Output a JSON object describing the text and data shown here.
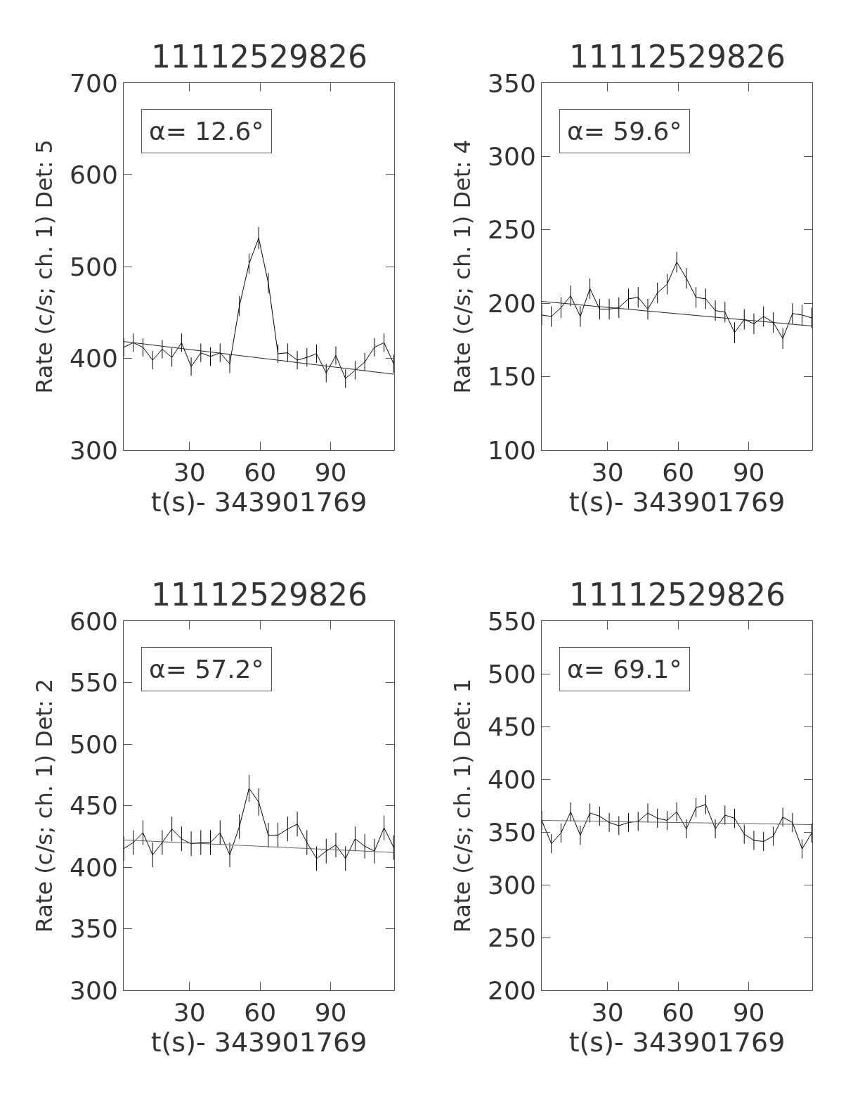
{
  "chart_data": [
    {
      "type": "line",
      "title": "11112529826",
      "xlabel": "t(s)- 343901769",
      "ylabel": "Rate (c/s; ch. 1) Det: 5",
      "annotations": [
        "α= 12.6°"
      ],
      "x": [
        2,
        6.1,
        10.2,
        14.3,
        18.4,
        22.5,
        26.6,
        30.7,
        34.8,
        38.9,
        43,
        47.1,
        51.2,
        55.3,
        59.4,
        63.5,
        67.6,
        71.7,
        75.8,
        79.9,
        84,
        88.1,
        92.2,
        96.3,
        100.4,
        104.5,
        108.6,
        112.7,
        116.8
      ],
      "xlim": [
        2,
        117
      ],
      "xticks": [
        30,
        60,
        90
      ],
      "ylim": [
        300,
        700
      ],
      "yticks": [
        300,
        400,
        500,
        600,
        700
      ],
      "marker": "none",
      "series": [
        {
          "color": "#000000",
          "values": [
            412,
            417,
            412,
            398,
            410,
            401,
            417,
            391,
            406,
            402,
            406,
            394,
            457,
            503,
            531,
            482,
            405,
            406,
            398,
            401,
            405,
            384,
            403,
            378,
            387,
            396,
            412,
            417,
            394
          ],
          "errors": [
            10,
            10,
            10,
            10,
            10,
            10,
            10,
            10,
            10,
            10,
            10,
            10,
            11,
            11,
            12,
            11,
            10,
            10,
            10,
            10,
            10,
            10,
            10,
            10,
            10,
            10,
            10,
            10,
            10
          ]
        },
        {
          "type": "line",
          "color": "#202020",
          "values": [
            418.3,
            417.0,
            415.8,
            414.5,
            413.2,
            411.9,
            410.7,
            409.4,
            408.1,
            406.9,
            405.6,
            404.3,
            403.0,
            401.8,
            400.5,
            399.2,
            398.0,
            396.7,
            395.4,
            394.1,
            392.9,
            391.6,
            390.3,
            389.1,
            387.8,
            386.5,
            385.2,
            384.0,
            382.7
          ]
        }
      ]
    },
    {
      "type": "line",
      "title": "11112529826",
      "xlabel": "t(s)- 343901769",
      "ylabel": "Rate (c/s; ch. 1) Det: 4",
      "annotations": [
        "α= 59.6°"
      ],
      "x": [
        2,
        6.1,
        10.2,
        14.3,
        18.4,
        22.5,
        26.6,
        30.7,
        34.8,
        38.9,
        43,
        47.1,
        51.2,
        55.3,
        59.4,
        63.5,
        67.6,
        71.7,
        75.8,
        79.9,
        84,
        88.1,
        92.2,
        96.3,
        100.4,
        104.5,
        108.6,
        112.7,
        116.8
      ],
      "xlim": [
        2,
        117
      ],
      "xticks": [
        30,
        60,
        90
      ],
      "ylim": [
        100,
        350
      ],
      "yticks": [
        100,
        150,
        200,
        250,
        300,
        350
      ],
      "marker": "none",
      "series": [
        {
          "color": "#000000",
          "values": [
            192,
            191,
            197,
            205,
            191,
            210,
            196,
            196,
            197,
            203,
            204,
            196,
            207,
            213,
            228,
            217,
            204,
            203,
            195,
            194,
            180,
            189,
            186,
            191,
            187,
            176,
            193,
            192,
            190
          ],
          "errors": [
            7,
            7,
            7,
            7,
            7,
            7,
            7,
            7,
            7,
            7,
            7,
            7,
            7,
            7,
            7,
            7,
            7,
            7,
            7,
            7,
            7,
            7,
            7,
            7,
            7,
            7,
            7,
            7,
            7
          ]
        },
        {
          "type": "line",
          "color": "#202020",
          "values": [
            201.3,
            200.7,
            200.1,
            199.5,
            198.9,
            198.3,
            197.7,
            197.1,
            196.5,
            195.9,
            195.3,
            194.7,
            194.1,
            193.5,
            192.9,
            192.3,
            191.7,
            191.1,
            190.5,
            189.9,
            189.3,
            188.7,
            188.1,
            187.5,
            186.9,
            186.3,
            185.7,
            185.1,
            184.5
          ]
        }
      ]
    },
    {
      "type": "line",
      "title": "11112529826",
      "xlabel": "t(s)- 343901769",
      "ylabel": "Rate (c/s; ch. 1) Det: 2",
      "annotations": [
        "α= 57.2°"
      ],
      "x": [
        2,
        6.1,
        10.2,
        14.3,
        18.4,
        22.5,
        26.6,
        30.7,
        34.8,
        38.9,
        43,
        47.1,
        51.2,
        55.3,
        59.4,
        63.5,
        67.6,
        71.7,
        75.8,
        79.9,
        84,
        88.1,
        92.2,
        96.3,
        100.4,
        104.5,
        108.6,
        112.7,
        116.8
      ],
      "xlim": [
        2,
        117
      ],
      "xticks": [
        30,
        60,
        90
      ],
      "ylim": [
        300,
        600
      ],
      "yticks": [
        300,
        350,
        400,
        450,
        500,
        550,
        600
      ],
      "marker": "none",
      "series": [
        {
          "color": "#000000",
          "values": [
            415,
            420,
            428,
            410,
            420,
            431,
            423,
            419,
            420,
            420,
            428,
            410,
            433,
            464,
            453,
            426,
            426,
            431,
            435,
            420,
            407,
            413,
            418,
            407,
            423,
            417,
            413,
            432,
            416
          ],
          "errors": [
            10,
            10,
            10,
            10,
            10,
            10,
            10,
            10,
            10,
            10,
            10,
            10,
            10,
            11,
            11,
            10,
            10,
            10,
            10,
            10,
            10,
            10,
            10,
            10,
            10,
            10,
            10,
            10,
            10
          ]
        },
        {
          "type": "line",
          "color": "#606060",
          "values": [
            422.1,
            421.7,
            421.4,
            421.0,
            420.6,
            420.3,
            419.9,
            419.5,
            419.2,
            418.8,
            418.5,
            418.1,
            417.7,
            417.4,
            417.0,
            416.6,
            416.3,
            415.9,
            415.5,
            415.2,
            414.8,
            414.5,
            414.1,
            413.7,
            413.4,
            413.0,
            412.6,
            412.3,
            411.9
          ]
        }
      ]
    },
    {
      "type": "line",
      "title": "11112529826",
      "xlabel": "t(s)- 343901769",
      "ylabel": "Rate (c/s; ch. 1) Det: 1",
      "annotations": [
        "α= 69.1°"
      ],
      "x": [
        2,
        6.1,
        10.2,
        14.3,
        18.4,
        22.5,
        26.6,
        30.7,
        34.8,
        38.9,
        43,
        47.1,
        51.2,
        55.3,
        59.4,
        63.5,
        67.6,
        71.7,
        75.8,
        79.9,
        84,
        88.1,
        92.2,
        96.3,
        100.4,
        104.5,
        108.6,
        112.7,
        116.8
      ],
      "xlim": [
        2,
        117
      ],
      "xticks": [
        30,
        60,
        90
      ],
      "ylim": [
        200,
        550
      ],
      "yticks": [
        200,
        250,
        300,
        350,
        400,
        450,
        500,
        550
      ],
      "marker": "none",
      "series": [
        {
          "color": "#000000",
          "values": [
            361,
            339,
            349,
            369,
            347,
            368,
            365,
            359,
            356,
            359,
            360,
            368,
            363,
            361,
            369,
            353,
            373,
            376,
            353,
            366,
            363,
            348,
            342,
            341,
            346,
            364,
            359,
            334,
            349
          ],
          "errors": [
            9,
            9,
            9,
            9,
            9,
            9,
            9,
            9,
            9,
            9,
            9,
            9,
            9,
            9,
            9,
            9,
            9,
            9,
            9,
            9,
            9,
            9,
            9,
            9,
            9,
            9,
            9,
            9,
            9
          ]
        },
        {
          "type": "line",
          "color": "#606060",
          "values": [
            361.0,
            360.9,
            360.7,
            360.6,
            360.4,
            360.3,
            360.1,
            360.0,
            359.9,
            359.7,
            359.6,
            359.4,
            359.3,
            359.1,
            359.0,
            358.9,
            358.7,
            358.6,
            358.4,
            358.3,
            358.1,
            358.0,
            357.9,
            357.7,
            357.6,
            357.4,
            357.3,
            357.1,
            357.0
          ]
        }
      ]
    }
  ]
}
